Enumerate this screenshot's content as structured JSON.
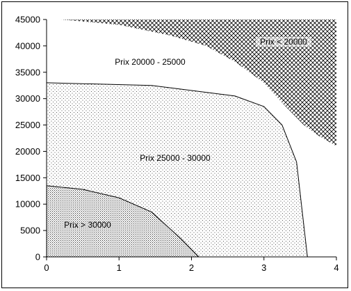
{
  "chart_data": {
    "type": "area",
    "title": "",
    "xlabel": "",
    "ylabel": "",
    "xlim": [
      0,
      4
    ],
    "ylim": [
      0,
      45000
    ],
    "x_ticks": [
      0,
      1,
      2,
      3,
      4
    ],
    "y_ticks": [
      0,
      5000,
      10000,
      15000,
      20000,
      25000,
      30000,
      35000,
      40000,
      45000
    ],
    "x_tick_labels": [
      "0",
      "1",
      "2",
      "3",
      "4"
    ],
    "y_tick_labels": [
      "0",
      "5000",
      "10000",
      "15000",
      "20000",
      "25000",
      "30000",
      "35000",
      "40000",
      "45000"
    ],
    "grid": false,
    "legend": "none",
    "regions": [
      {
        "name": "Prix < 20000",
        "pattern": "crosshatch",
        "boundary": [
          [
            0.2,
            45000
          ],
          [
            1.0,
            44000
          ],
          [
            1.7,
            42000
          ],
          [
            2.2,
            40000
          ],
          [
            2.6,
            37000
          ],
          [
            3.0,
            33000
          ],
          [
            3.3,
            28500
          ],
          [
            3.55,
            25000
          ],
          [
            3.75,
            23000
          ],
          [
            4.0,
            21000
          ]
        ]
      },
      {
        "name": "Prix 20000 - 25000",
        "pattern": "none"
      },
      {
        "name": "Prix 25000 - 30000",
        "pattern": "sparse-dots",
        "boundary": [
          [
            0,
            33000
          ],
          [
            1.45,
            32500
          ],
          [
            2.6,
            30500
          ],
          [
            3.0,
            28500
          ],
          [
            3.25,
            25000
          ],
          [
            3.45,
            18000
          ],
          [
            3.6,
            0
          ]
        ]
      },
      {
        "name": "Prix > 30000",
        "pattern": "dense-dots",
        "boundary": [
          [
            0,
            13500
          ],
          [
            0.5,
            12800
          ],
          [
            1.0,
            11200
          ],
          [
            1.45,
            8500
          ],
          [
            1.85,
            3500
          ],
          [
            2.1,
            0
          ]
        ]
      }
    ]
  },
  "colors": {
    "line": "#000000",
    "background": "#ffffff"
  }
}
